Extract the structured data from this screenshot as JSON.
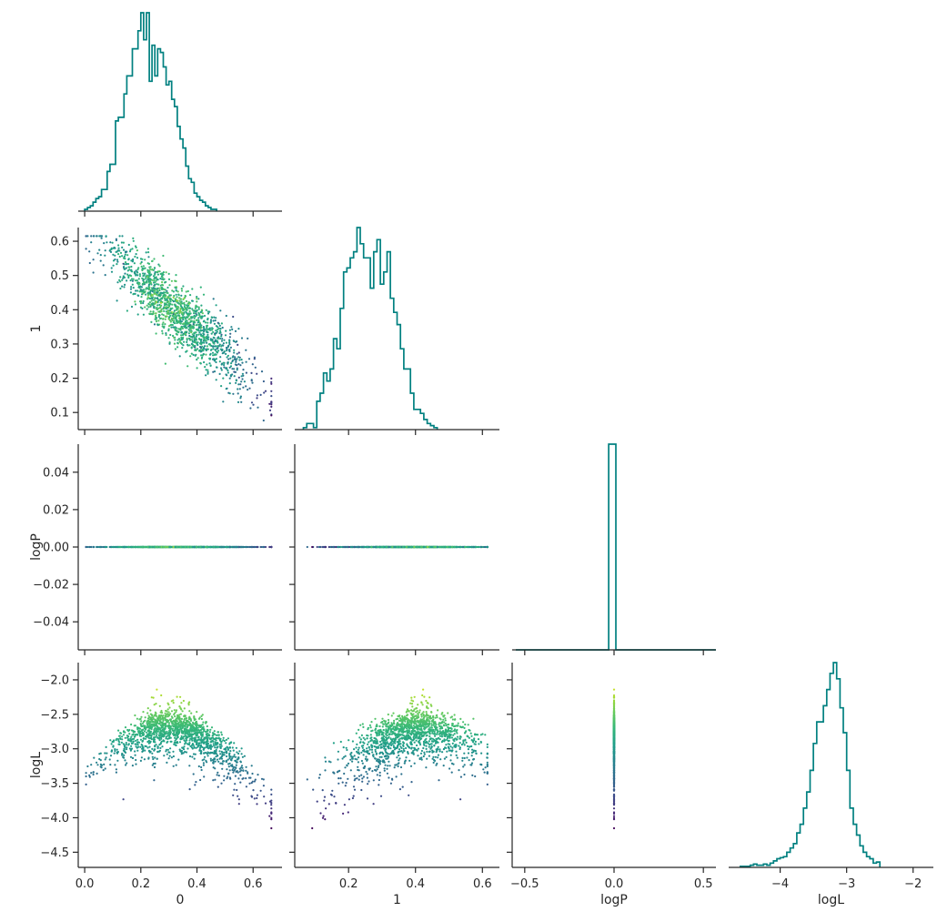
{
  "chart_data": {
    "type": "scatter",
    "kind": "corner-plot",
    "variables": [
      "0",
      "1",
      "logP",
      "logL"
    ],
    "hist_color": "#008080",
    "point_colormap": "viridis",
    "color_by": "logL",
    "axes": {
      "0": {
        "label": "0",
        "range": [
          -0.01,
          0.69
        ],
        "ticks": [
          0.0,
          0.2,
          0.4,
          0.6
        ],
        "tick_labels": [
          "0.0",
          "0.2",
          "0.4",
          "0.6"
        ]
      },
      "1": {
        "label": "1",
        "range": [
          0.05,
          0.64
        ],
        "ticks": [
          0.1,
          0.2,
          0.3,
          0.4,
          0.5,
          0.6
        ],
        "tick_labels": [
          "0.1",
          "0.2",
          "0.3",
          "0.4",
          "0.5",
          "0.6"
        ],
        "x_ticks": [
          0.2,
          0.4,
          0.6
        ],
        "x_tick_labels": [
          "0.2",
          "0.4",
          "0.6"
        ]
      },
      "logP": {
        "label": "logP",
        "range": [
          -0.055,
          0.055
        ],
        "ticks": [
          -0.04,
          -0.02,
          0.0,
          0.02,
          0.04
        ],
        "tick_labels": [
          "−0.04",
          "−0.02",
          "0.00",
          "0.02",
          "0.04"
        ],
        "x_range": [
          -0.55,
          0.55
        ],
        "x_ticks": [
          -0.5,
          0.0,
          0.5
        ],
        "x_tick_labels": [
          "−0.5",
          "0.0",
          "0.5"
        ]
      },
      "logL": {
        "label": "logL",
        "range": [
          -4.72,
          -1.75
        ],
        "ticks": [
          -4.5,
          -4.0,
          -3.5,
          -3.0,
          -2.5,
          -2.0
        ],
        "tick_labels": [
          "−4.5",
          "−4.0",
          "−3.5",
          "−3.0",
          "−2.5",
          "−2.0"
        ],
        "x_ticks": [
          -4,
          -3,
          -2
        ],
        "x_tick_labels": [
          "−4",
          "−3",
          "−2"
        ]
      }
    },
    "histograms": {
      "0": {
        "edges_start": 0.0,
        "bin_width": 0.01,
        "counts": [
          1,
          2,
          3,
          5,
          7,
          8,
          12,
          12,
          22,
          26,
          26,
          50,
          52,
          52,
          65,
          75,
          75,
          90,
          90,
          100,
          110,
          95,
          110,
          72,
          92,
          75,
          90,
          88,
          80,
          70,
          72,
          62,
          58,
          47,
          40,
          35,
          25,
          18,
          16,
          10,
          8,
          6,
          5,
          3,
          2,
          1,
          1
        ]
      },
      "1": {
        "edges_start": 0.065,
        "bin_width": 0.01,
        "counts": [
          1,
          3,
          3,
          1,
          14,
          18,
          28,
          24,
          30,
          45,
          40,
          60,
          78,
          80,
          85,
          88,
          100,
          92,
          85,
          85,
          70,
          88,
          94,
          72,
          78,
          88,
          65,
          58,
          52,
          40,
          30,
          30,
          18,
          10,
          10,
          8,
          5,
          3,
          2,
          1
        ]
      },
      "logP": {
        "edges_start": -0.55,
        "bin_width": 0.04,
        "counts": [
          0,
          0,
          0,
          0,
          0,
          0,
          0,
          0,
          0,
          0,
          0,
          0,
          0,
          1000,
          0,
          0,
          0,
          0,
          0,
          0,
          0,
          0,
          0,
          0,
          0,
          0,
          0,
          0
        ]
      },
      "logL": {
        "edges_start": -4.6,
        "bin_width": 0.05,
        "counts": [
          1,
          1,
          1,
          2,
          3,
          2,
          2,
          3,
          2,
          4,
          6,
          8,
          9,
          10,
          14,
          18,
          22,
          32,
          40,
          55,
          70,
          90,
          115,
          135,
          135,
          150,
          165,
          180,
          190,
          175,
          148,
          125,
          90,
          55,
          40,
          30,
          20,
          14,
          10,
          8,
          4,
          5
        ]
      }
    },
    "scatter_summary": {
      "0_vs_1": {
        "relation": "negative linear",
        "approx": "1 ≈ 0.63 − 0.72·0",
        "spread": 0.045
      },
      "logP_vs_all": {
        "logP_value": 0.0
      },
      "logL_vs_0": {
        "relation": "concave",
        "peak_near": 0.3,
        "peak_logL": -2.55
      },
      "logL_vs_1": {
        "relation": "flat with upward tail near 0.42",
        "typical_logL": -2.75
      }
    }
  }
}
